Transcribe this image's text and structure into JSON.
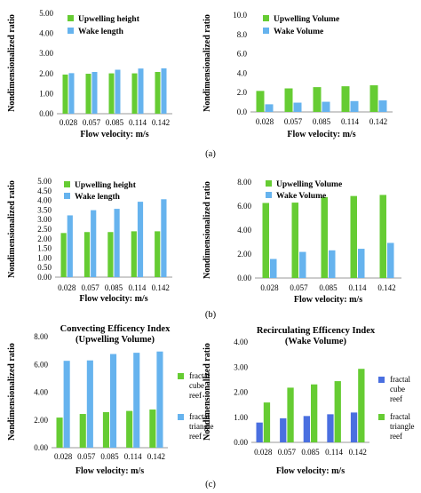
{
  "captions": [
    "(a)",
    "(b)",
    "(c)"
  ],
  "chart_data": [
    {
      "type": "bar",
      "categories": [
        "0.028",
        "0.057",
        "0.085",
        "0.114",
        "0.142"
      ],
      "series": [
        {
          "name": "Upwelling height",
          "values": [
            1.95,
            1.99,
            2.01,
            2.01,
            2.08
          ],
          "color": "#66cc33"
        },
        {
          "name": "Wake length",
          "values": [
            2.02,
            2.08,
            2.19,
            2.25,
            2.26
          ],
          "color": "#66b3ee"
        }
      ],
      "title": "",
      "xlabel": "Flow velocity: m/s",
      "ylabel": "Nondimensionalized ratio",
      "ylim": [
        0,
        5
      ],
      "yticks": [
        "0.00",
        "1.00",
        "2.00",
        "3.00",
        "4.00",
        "5.00"
      ],
      "legend": "top-left"
    },
    {
      "type": "bar",
      "categories": [
        "0.028",
        "0.057",
        "0.085",
        "0.114",
        "0.142"
      ],
      "series": [
        {
          "name": "Upwelling Volume",
          "values": [
            2.17,
            2.43,
            2.56,
            2.65,
            2.75
          ],
          "color": "#66cc33"
        },
        {
          "name": "Wake Volume",
          "values": [
            0.79,
            0.96,
            1.05,
            1.12,
            1.19
          ],
          "color": "#66b3ee"
        }
      ],
      "title": "",
      "xlabel": "Flow velocity: m/s",
      "ylabel": "Nondimensionalized ratio",
      "ylim": [
        0,
        10
      ],
      "yticks": [
        "0.0",
        "2.0",
        "4.0",
        "6.0",
        "8.0",
        "10.0"
      ],
      "legend": "top-left"
    },
    {
      "type": "bar",
      "categories": [
        "0.028",
        "0.057",
        "0.085",
        "0.114",
        "0.142"
      ],
      "series": [
        {
          "name": "Upwelling height",
          "values": [
            2.3,
            2.35,
            2.35,
            2.39,
            2.39
          ],
          "color": "#66cc33"
        },
        {
          "name": "Wake length",
          "values": [
            3.22,
            3.49,
            3.56,
            3.93,
            4.06
          ],
          "color": "#66b3ee"
        }
      ],
      "title": "",
      "xlabel": "Flow velocity: m/s",
      "ylabel": "Nondimensionalized ratio",
      "ylim": [
        0,
        5
      ],
      "yticks": [
        "0.00",
        "0.50",
        "1.00",
        "1.50",
        "2.00",
        "2.50",
        "3.00",
        "3.50",
        "4.00",
        "4.50",
        "5.00"
      ],
      "legend": "top-left"
    },
    {
      "type": "bar",
      "categories": [
        "0.028",
        "0.057",
        "0.085",
        "0.114",
        "0.142"
      ],
      "series": [
        {
          "name": "Upwelling Volume",
          "values": [
            6.26,
            6.29,
            6.75,
            6.84,
            6.93
          ],
          "color": "#66cc33"
        },
        {
          "name": "Wake Volume",
          "values": [
            1.59,
            2.18,
            2.31,
            2.44,
            2.93
          ],
          "color": "#66b3ee"
        }
      ],
      "title": "",
      "xlabel": "Flow velocity: m/s",
      "ylabel": "Nondimensionalized ratio",
      "ylim": [
        0,
        8
      ],
      "yticks": [
        "0.00",
        "2.00",
        "4.00",
        "6.00",
        "8.00"
      ],
      "legend": "top-left"
    },
    {
      "type": "bar",
      "categories": [
        "0.028",
        "0.057",
        "0.085",
        "0.114",
        "0.142"
      ],
      "series": [
        {
          "name": "fractal cube reef",
          "values": [
            2.17,
            2.43,
            2.56,
            2.65,
            2.75
          ],
          "color": "#66cc33"
        },
        {
          "name": "fractal triangle reef",
          "values": [
            6.26,
            6.29,
            6.75,
            6.84,
            6.93
          ],
          "color": "#66b3ee"
        }
      ],
      "title": "Convecting Efficency Index (Upwelling Volume)",
      "title_lines": [
        "Convecting Efficency Index",
        "(Upwelling Volume)"
      ],
      "xlabel": "Flow velocity: m/s",
      "ylabel": "Nondimensionalized ratio",
      "ylim": [
        0,
        8
      ],
      "yticks": [
        "0.00",
        "2.00",
        "4.00",
        "6.00",
        "8.00"
      ],
      "legend": "right"
    },
    {
      "type": "bar",
      "categories": [
        "0.028",
        "0.057",
        "0.085",
        "0.114",
        "0.142"
      ],
      "series": [
        {
          "name": "fractal cube reef",
          "values": [
            0.79,
            0.96,
            1.05,
            1.12,
            1.19
          ],
          "color": "#4a6fe0"
        },
        {
          "name": "fractal triangle reef",
          "values": [
            1.59,
            2.18,
            2.31,
            2.44,
            2.93
          ],
          "color": "#66cc33"
        }
      ],
      "title": "Recirculating Efficency Index (Wake Volume)",
      "title_lines": [
        "Recirculating Efficency Index",
        "(Wake Volume)"
      ],
      "xlabel": "Flow velocity: m/s",
      "ylabel": "Nondimensionalized ratio",
      "ylim": [
        0,
        4
      ],
      "yticks": [
        "0.00",
        "1.00",
        "2.00",
        "3.00",
        "4.00"
      ],
      "legend": "right"
    }
  ]
}
